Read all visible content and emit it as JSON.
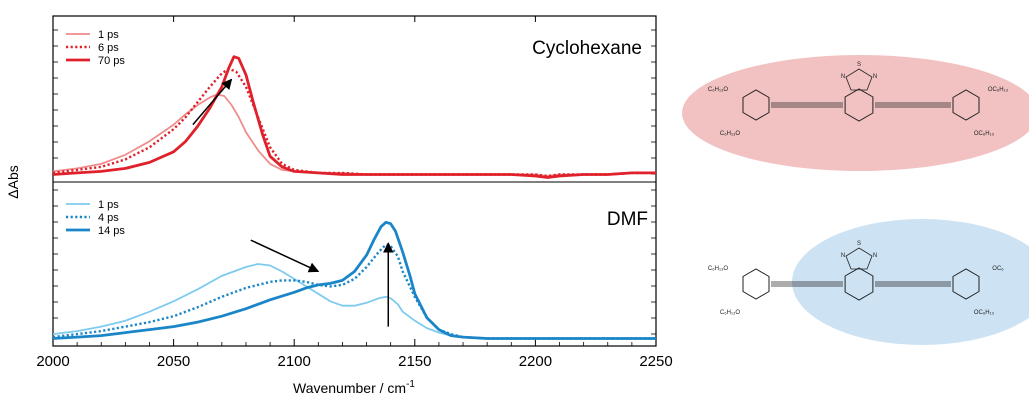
{
  "chart_data": [
    {
      "type": "line",
      "panel": "top",
      "title": "Cyclohexane",
      "xlabel": "Wavenumber / cm",
      "xlabel_superscript": "-1",
      "ylabel": "ΔAbs",
      "xlim": [
        2000,
        2250
      ],
      "ylim": [
        -0.05,
        1.05
      ],
      "x_ticks": [
        2000,
        2050,
        2100,
        2150,
        2200,
        2250
      ],
      "colors": {
        "s1": "#f08c8c",
        "s2": "#e0202a",
        "s3": "#e0202a"
      },
      "series": [
        {
          "name": "1 ps",
          "style": "solid-light",
          "x": [
            2000,
            2010,
            2020,
            2030,
            2040,
            2050,
            2055,
            2060,
            2065,
            2068,
            2071,
            2074,
            2077,
            2080,
            2085,
            2090,
            2095,
            2100,
            2110,
            2120,
            2130,
            2140,
            2150,
            2160,
            2170,
            2180,
            2190,
            2200,
            2205,
            2210,
            2220,
            2230,
            2240,
            2250
          ],
          "y": [
            0.02,
            0.04,
            0.07,
            0.13,
            0.22,
            0.33,
            0.4,
            0.46,
            0.51,
            0.53,
            0.52,
            0.46,
            0.38,
            0.28,
            0.16,
            0.07,
            0.03,
            0.02,
            0.01,
            0.01,
            0.0,
            0.0,
            0.0,
            0.0,
            0.0,
            0.0,
            0.0,
            0.0,
            -0.01,
            0.0,
            0.0,
            0.0,
            0.01,
            0.01
          ]
        },
        {
          "name": "6 ps",
          "style": "dotted",
          "x": [
            2000,
            2010,
            2020,
            2030,
            2040,
            2050,
            2055,
            2060,
            2065,
            2070,
            2073,
            2076,
            2080,
            2085,
            2090,
            2095,
            2100,
            2110,
            2120,
            2130,
            2140,
            2150,
            2160,
            2170,
            2180,
            2190,
            2200,
            2205,
            2210,
            2220,
            2230,
            2240,
            2250
          ],
          "y": [
            0.01,
            0.03,
            0.05,
            0.1,
            0.18,
            0.3,
            0.38,
            0.48,
            0.58,
            0.67,
            0.7,
            0.68,
            0.58,
            0.38,
            0.18,
            0.07,
            0.03,
            0.01,
            0.01,
            0.0,
            0.0,
            0.0,
            0.0,
            0.0,
            0.0,
            0.0,
            0.0,
            -0.01,
            0.0,
            0.0,
            0.0,
            0.01,
            0.01
          ]
        },
        {
          "name": "70 ps",
          "style": "solid-bold",
          "x": [
            2000,
            2010,
            2020,
            2030,
            2040,
            2050,
            2055,
            2060,
            2065,
            2070,
            2073,
            2075,
            2077,
            2080,
            2083,
            2087,
            2090,
            2095,
            2100,
            2110,
            2120,
            2130,
            2140,
            2150,
            2160,
            2170,
            2180,
            2190,
            2200,
            2205,
            2210,
            2220,
            2230,
            2240,
            2250
          ],
          "y": [
            0.0,
            0.01,
            0.02,
            0.04,
            0.08,
            0.15,
            0.22,
            0.32,
            0.44,
            0.58,
            0.71,
            0.78,
            0.77,
            0.66,
            0.48,
            0.26,
            0.12,
            0.05,
            0.02,
            0.01,
            0.0,
            0.0,
            0.0,
            0.0,
            0.0,
            0.0,
            0.0,
            0.0,
            -0.01,
            -0.02,
            -0.01,
            0.0,
            0.0,
            0.01,
            0.01
          ]
        }
      ],
      "annotations": [
        {
          "type": "arrow",
          "from": [
            2058,
            0.33
          ],
          "to": [
            2074,
            0.63
          ]
        }
      ]
    },
    {
      "type": "line",
      "panel": "bottom",
      "title": "DMF",
      "xlabel": "Wavenumber / cm",
      "xlabel_superscript": "-1",
      "ylabel": "ΔAbs",
      "xlim": [
        2000,
        2250
      ],
      "ylim": [
        -0.05,
        1.05
      ],
      "x_ticks": [
        2000,
        2050,
        2100,
        2150,
        2200,
        2250
      ],
      "colors": {
        "s1": "#7ecbef",
        "s2": "#1a86c8",
        "s3": "#1a86c8"
      },
      "series": [
        {
          "name": "1 ps",
          "style": "solid-light",
          "x": [
            2000,
            2010,
            2020,
            2030,
            2040,
            2050,
            2060,
            2070,
            2080,
            2085,
            2090,
            2095,
            2100,
            2105,
            2110,
            2115,
            2120,
            2125,
            2130,
            2135,
            2138,
            2140,
            2143,
            2145,
            2150,
            2155,
            2160,
            2165,
            2170,
            2180,
            2190,
            2200,
            2210,
            2220,
            2230,
            2240,
            2250
          ],
          "y": [
            0.03,
            0.05,
            0.08,
            0.12,
            0.18,
            0.25,
            0.33,
            0.42,
            0.48,
            0.5,
            0.49,
            0.45,
            0.4,
            0.35,
            0.3,
            0.25,
            0.22,
            0.22,
            0.24,
            0.27,
            0.28,
            0.27,
            0.23,
            0.18,
            0.12,
            0.07,
            0.04,
            0.02,
            0.01,
            0.0,
            0.0,
            0.0,
            0.0,
            0.0,
            0.0,
            0.0,
            0.0
          ]
        },
        {
          "name": "4 ps",
          "style": "dotted",
          "x": [
            2000,
            2010,
            2020,
            2030,
            2040,
            2050,
            2060,
            2070,
            2080,
            2090,
            2095,
            2100,
            2105,
            2110,
            2115,
            2120,
            2125,
            2130,
            2135,
            2138,
            2140,
            2143,
            2145,
            2150,
            2155,
            2160,
            2165,
            2170,
            2180,
            2190,
            2200,
            2210,
            2220,
            2230,
            2240,
            2250
          ],
          "y": [
            0.01,
            0.03,
            0.05,
            0.08,
            0.11,
            0.15,
            0.21,
            0.28,
            0.34,
            0.38,
            0.39,
            0.39,
            0.38,
            0.36,
            0.35,
            0.36,
            0.4,
            0.48,
            0.58,
            0.63,
            0.62,
            0.55,
            0.45,
            0.28,
            0.14,
            0.06,
            0.03,
            0.01,
            0.0,
            0.0,
            0.0,
            0.0,
            0.0,
            0.0,
            0.0,
            0.0
          ]
        },
        {
          "name": "14 ps",
          "style": "solid-bold",
          "x": [
            2000,
            2010,
            2020,
            2030,
            2040,
            2050,
            2060,
            2070,
            2080,
            2090,
            2100,
            2105,
            2110,
            2115,
            2120,
            2125,
            2130,
            2133,
            2136,
            2138,
            2140,
            2142,
            2145,
            2148,
            2150,
            2155,
            2160,
            2165,
            2170,
            2180,
            2190,
            2200,
            2210,
            2220,
            2230,
            2240,
            2250
          ],
          "y": [
            0.0,
            0.01,
            0.02,
            0.04,
            0.06,
            0.08,
            0.11,
            0.15,
            0.2,
            0.26,
            0.31,
            0.34,
            0.36,
            0.37,
            0.39,
            0.45,
            0.56,
            0.66,
            0.75,
            0.78,
            0.77,
            0.72,
            0.58,
            0.42,
            0.3,
            0.14,
            0.06,
            0.02,
            0.01,
            0.0,
            0.0,
            0.0,
            0.0,
            0.0,
            0.0,
            0.0,
            0.0
          ]
        }
      ],
      "annotations": [
        {
          "type": "arrow",
          "from": [
            2082,
            0.66
          ],
          "to": [
            2110,
            0.45
          ]
        },
        {
          "type": "arrow",
          "from": [
            2139,
            0.08
          ],
          "to": [
            2139,
            0.64
          ]
        }
      ]
    }
  ],
  "molecules": [
    {
      "highlight_color": "#f2c2c2",
      "ring_atoms": [
        "N",
        "S",
        "N"
      ],
      "left_substituents": [
        "C₆H₁₃O",
        "C₆H₁₃O"
      ],
      "right_substituents": [
        "OC₆H₁₃",
        "OC₆H₁₃"
      ]
    },
    {
      "highlight_color": "#cde3f4",
      "ring_atoms": [
        "N",
        "S",
        "N"
      ],
      "left_substituents": [
        "C₆H₁₃O",
        "C₆H₁₃O"
      ],
      "right_substituents": [
        "OC₆",
        "OC₆H₁₃"
      ]
    }
  ]
}
